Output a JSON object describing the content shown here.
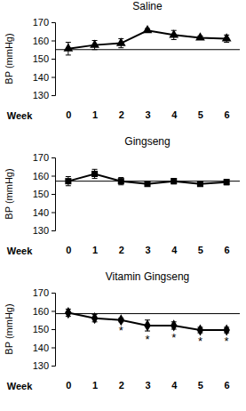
{
  "chart_data": [
    {
      "type": "line",
      "title": "Saline",
      "x_label": "Week",
      "y_label": "BP (mmHg)",
      "categories": [
        "0",
        "1",
        "2",
        "3",
        "4",
        "5",
        "6"
      ],
      "values": [
        155.5,
        157.5,
        158.5,
        165.5,
        163,
        161.5,
        161
      ],
      "errors": [
        3.5,
        2.5,
        2.5,
        1,
        2.5,
        1,
        2
      ],
      "baseline": 155,
      "color": "#000000",
      "marker": "triangle",
      "line_style": "solid",
      "ylim": [
        130,
        170
      ],
      "yticks": [
        130,
        140,
        150,
        160,
        170
      ]
    },
    {
      "type": "line",
      "title": "Gingseng",
      "x_label": "Week",
      "y_label": "BP (mmHg)",
      "categories": [
        "0",
        "1",
        "2",
        "3",
        "4",
        "5",
        "6"
      ],
      "values": [
        157,
        161,
        157,
        155.5,
        157,
        155.5,
        156.5
      ],
      "errors": [
        2.5,
        2.5,
        2,
        1,
        1.5,
        1,
        1.5
      ],
      "baseline": 157,
      "color": "#000000",
      "marker": "square",
      "line_style": "solid",
      "ylim": [
        130,
        170
      ],
      "yticks": [
        130,
        140,
        150,
        160,
        170
      ]
    },
    {
      "type": "line",
      "title": "Vitamin Gingseng",
      "x_label": "Week",
      "y_label": "BP (mmHg)",
      "categories": [
        "0",
        "1",
        "2",
        "3",
        "4",
        "5",
        "6"
      ],
      "values": [
        159,
        156,
        155,
        152,
        152,
        149.5,
        149.5
      ],
      "errors": [
        2,
        2,
        1,
        3,
        2,
        1.5,
        1.5
      ],
      "significance": [
        null,
        null,
        "*",
        "*",
        "*",
        "*",
        "*"
      ],
      "baseline": 158.5,
      "color": "#000000",
      "marker": "diamond",
      "line_style": "solid",
      "ylim": [
        130,
        170
      ],
      "yticks": [
        130,
        140,
        150,
        160,
        170
      ]
    }
  ]
}
